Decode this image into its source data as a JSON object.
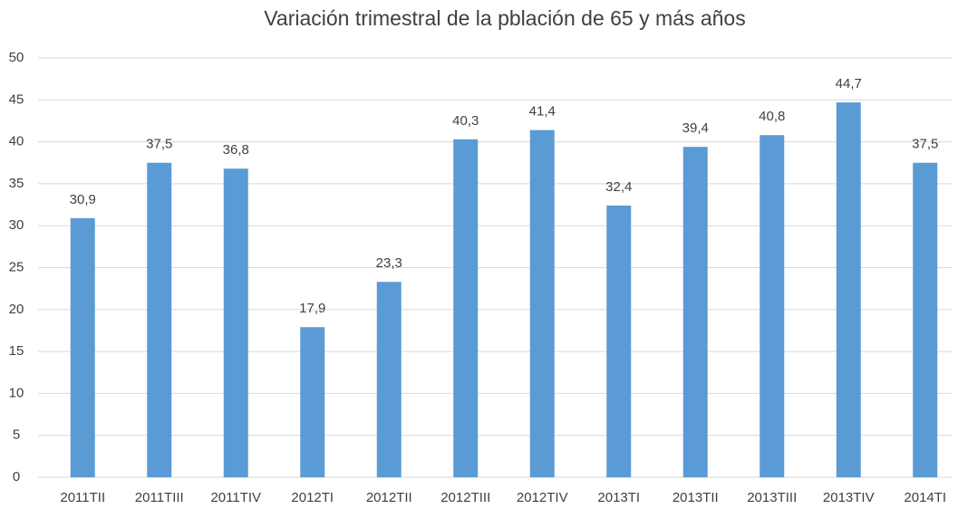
{
  "chart_data": {
    "type": "bar",
    "title": "Variación trimestral de la pblación de 65 y más años",
    "categories": [
      "2011TII",
      "2011TIII",
      "2011TIV",
      "2012TI",
      "2012TII",
      "2012TIII",
      "2012TIV",
      "2013TI",
      "2013TII",
      "2013TIII",
      "2013TIV",
      "2014TI"
    ],
    "values": [
      30.9,
      37.5,
      36.8,
      17.9,
      23.3,
      40.3,
      41.4,
      32.4,
      39.4,
      40.8,
      44.7,
      37.5
    ],
    "value_labels": [
      "30,9",
      "37,5",
      "36,8",
      "17,9",
      "23,3",
      "40,3",
      "41,4",
      "32,4",
      "39,4",
      "40,8",
      "44,7",
      "37,5"
    ],
    "color": "#5b9bd5",
    "ylim": [
      0,
      50
    ],
    "yticks": [
      0,
      5,
      10,
      15,
      20,
      25,
      30,
      35,
      40,
      45,
      50
    ],
    "grid": true
  }
}
